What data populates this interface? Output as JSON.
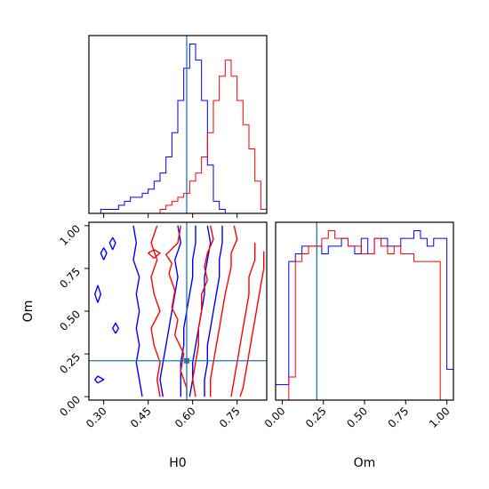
{
  "chart_data": {
    "type": "corner",
    "parameters": [
      "H0",
      "Om"
    ],
    "truth": {
      "H0": 0.58,
      "Om": 0.21
    },
    "colors": {
      "series_a": "#0000ff",
      "series_b": "#ff0000",
      "truth": "#1f77b4"
    },
    "panels": [
      {
        "id": "h0-marginal",
        "type": "histogram",
        "xlim": [
          0.25,
          0.85
        ],
        "xticks": [
          0.3,
          0.45,
          0.6,
          0.75
        ],
        "bins": {
          "start": 0.25,
          "width": 0.02
        },
        "series": [
          {
            "color": "#0000ff",
            "counts": [
              0,
              0,
              1,
              1,
              1,
              2,
              3,
              4,
              4,
              5,
              6,
              8,
              10,
              14,
              20,
              28,
              36,
              42,
              38,
              28,
              12,
              3,
              1,
              0,
              0,
              0,
              0,
              0,
              0,
              0
            ]
          },
          {
            "color": "#ff0000",
            "counts": [
              0,
              0,
              0,
              0,
              0,
              0,
              0,
              0,
              0,
              0,
              0,
              0,
              1,
              2,
              3,
              4,
              5,
              8,
              10,
              14,
              20,
              28,
              34,
              38,
              34,
              28,
              22,
              16,
              8,
              1
            ]
          }
        ]
      },
      {
        "id": "h0-om-contour",
        "type": "contour",
        "xlabel": "H0",
        "ylabel": "Om",
        "xlim": [
          0.25,
          0.85
        ],
        "ylim": [
          -0.02,
          1.02
        ],
        "xticks": [
          "0.30",
          "0.45",
          "0.60",
          "0.75"
        ],
        "yticks": [
          "0.00",
          "0.25",
          "0.50",
          "0.75",
          "1.00"
        ],
        "series": [
          {
            "color": "#0000ff",
            "contours": [
              [
                [
                  0.4,
                  1.0
                ],
                [
                  0.41,
                  0.9
                ],
                [
                  0.4,
                  0.8
                ],
                [
                  0.42,
                  0.7
                ],
                [
                  0.41,
                  0.6
                ],
                [
                  0.42,
                  0.5
                ],
                [
                  0.41,
                  0.4
                ],
                [
                  0.42,
                  0.3
                ],
                [
                  0.41,
                  0.2
                ],
                [
                  0.42,
                  0.1
                ],
                [
                  0.43,
                  0.0
                ]
              ],
              [
                [
                  0.55,
                  1.0
                ],
                [
                  0.56,
                  0.9
                ],
                [
                  0.54,
                  0.8
                ],
                [
                  0.55,
                  0.7
                ],
                [
                  0.54,
                  0.6
                ],
                [
                  0.53,
                  0.5
                ],
                [
                  0.52,
                  0.4
                ],
                [
                  0.51,
                  0.3
                ],
                [
                  0.5,
                  0.2
                ],
                [
                  0.49,
                  0.1
                ],
                [
                  0.5,
                  0.0
                ]
              ],
              [
                [
                  0.61,
                  1.0
                ],
                [
                  0.61,
                  0.9
                ],
                [
                  0.6,
                  0.8
                ],
                [
                  0.6,
                  0.7
                ],
                [
                  0.59,
                  0.6
                ],
                [
                  0.58,
                  0.5
                ],
                [
                  0.57,
                  0.4
                ],
                [
                  0.57,
                  0.3
                ],
                [
                  0.56,
                  0.2
                ],
                [
                  0.56,
                  0.1
                ],
                [
                  0.56,
                  0.0
                ]
              ],
              [
                [
                  0.65,
                  1.0
                ],
                [
                  0.66,
                  0.9
                ],
                [
                  0.65,
                  0.8
                ],
                [
                  0.64,
                  0.7
                ],
                [
                  0.64,
                  0.6
                ],
                [
                  0.63,
                  0.5
                ],
                [
                  0.62,
                  0.4
                ],
                [
                  0.61,
                  0.3
                ],
                [
                  0.6,
                  0.2
                ],
                [
                  0.6,
                  0.1
                ],
                [
                  0.59,
                  0.0
                ]
              ],
              [
                [
                  0.7,
                  1.0
                ],
                [
                  0.7,
                  0.9
                ],
                [
                  0.69,
                  0.8
                ],
                [
                  0.69,
                  0.7
                ],
                [
                  0.68,
                  0.6
                ],
                [
                  0.67,
                  0.5
                ],
                [
                  0.66,
                  0.4
                ],
                [
                  0.65,
                  0.3
                ],
                [
                  0.65,
                  0.2
                ],
                [
                  0.64,
                  0.1
                ],
                [
                  0.64,
                  0.0
                ]
              ],
              [
                [
                  0.28,
                  0.55
                ],
                [
                  0.29,
                  0.6
                ],
                [
                  0.28,
                  0.65
                ],
                [
                  0.27,
                  0.6
                ],
                [
                  0.28,
                  0.55
                ]
              ],
              [
                [
                  0.3,
                  0.8
                ],
                [
                  0.31,
                  0.84
                ],
                [
                  0.3,
                  0.87
                ],
                [
                  0.29,
                  0.84
                ],
                [
                  0.3,
                  0.8
                ]
              ],
              [
                [
                  0.33,
                  0.86
                ],
                [
                  0.34,
                  0.9
                ],
                [
                  0.33,
                  0.93
                ],
                [
                  0.32,
                  0.9
                ],
                [
                  0.33,
                  0.86
                ]
              ],
              [
                [
                  0.34,
                  0.37
                ],
                [
                  0.35,
                  0.4
                ],
                [
                  0.34,
                  0.43
                ],
                [
                  0.33,
                  0.4
                ],
                [
                  0.34,
                  0.37
                ]
              ],
              [
                [
                  0.28,
                  0.08
                ],
                [
                  0.3,
                  0.1
                ],
                [
                  0.28,
                  0.12
                ],
                [
                  0.27,
                  0.1
                ],
                [
                  0.28,
                  0.08
                ]
              ]
            ]
          },
          {
            "color": "#ff0000",
            "contours": [
              [
                [
                  0.48,
                  1.0
                ],
                [
                  0.46,
                  0.9
                ],
                [
                  0.48,
                  0.8
                ],
                [
                  0.46,
                  0.7
                ],
                [
                  0.47,
                  0.6
                ],
                [
                  0.49,
                  0.5
                ],
                [
                  0.46,
                  0.4
                ],
                [
                  0.47,
                  0.3
                ],
                [
                  0.49,
                  0.2
                ],
                [
                  0.48,
                  0.1
                ],
                [
                  0.49,
                  0.0
                ]
              ],
              [
                [
                  0.56,
                  1.0
                ],
                [
                  0.55,
                  0.9
                ],
                [
                  0.51,
                  0.83
                ],
                [
                  0.53,
                  0.78
                ],
                [
                  0.52,
                  0.72
                ],
                [
                  0.54,
                  0.62
                ],
                [
                  0.53,
                  0.52
                ],
                [
                  0.55,
                  0.45
                ],
                [
                  0.54,
                  0.36
                ],
                [
                  0.57,
                  0.25
                ],
                [
                  0.56,
                  0.15
                ],
                [
                  0.58,
                  0.05
                ],
                [
                  0.58,
                  0.0
                ]
              ],
              [
                [
                  0.66,
                  1.0
                ],
                [
                  0.67,
                  0.92
                ],
                [
                  0.65,
                  0.84
                ],
                [
                  0.64,
                  0.76
                ],
                [
                  0.65,
                  0.68
                ],
                [
                  0.63,
                  0.6
                ],
                [
                  0.63,
                  0.5
                ],
                [
                  0.62,
                  0.4
                ],
                [
                  0.62,
                  0.3
                ],
                [
                  0.61,
                  0.2
                ],
                [
                  0.6,
                  0.1
                ],
                [
                  0.61,
                  0.0
                ]
              ],
              [
                [
                  0.74,
                  1.0
                ],
                [
                  0.75,
                  0.92
                ],
                [
                  0.73,
                  0.84
                ],
                [
                  0.73,
                  0.76
                ],
                [
                  0.72,
                  0.68
                ],
                [
                  0.71,
                  0.6
                ],
                [
                  0.7,
                  0.5
                ],
                [
                  0.69,
                  0.4
                ],
                [
                  0.68,
                  0.3
                ],
                [
                  0.67,
                  0.2
                ],
                [
                  0.66,
                  0.1
                ],
                [
                  0.66,
                  0.0
                ]
              ],
              [
                [
                  0.81,
                  0.9
                ],
                [
                  0.81,
                  0.8
                ],
                [
                  0.79,
                  0.7
                ],
                [
                  0.79,
                  0.6
                ],
                [
                  0.78,
                  0.5
                ],
                [
                  0.77,
                  0.4
                ],
                [
                  0.76,
                  0.3
                ],
                [
                  0.75,
                  0.2
                ],
                [
                  0.74,
                  0.1
                ],
                [
                  0.73,
                  0.0
                ]
              ],
              [
                [
                  0.84,
                  0.85
                ],
                [
                  0.84,
                  0.75
                ],
                [
                  0.83,
                  0.65
                ],
                [
                  0.82,
                  0.55
                ],
                [
                  0.81,
                  0.45
                ],
                [
                  0.8,
                  0.35
                ],
                [
                  0.79,
                  0.25
                ],
                [
                  0.78,
                  0.15
                ],
                [
                  0.77,
                  0.05
                ],
                [
                  0.76,
                  0.0
                ]
              ],
              [
                [
                  0.47,
                  0.81
                ],
                [
                  0.49,
                  0.84
                ],
                [
                  0.47,
                  0.86
                ],
                [
                  0.45,
                  0.84
                ],
                [
                  0.47,
                  0.81
                ]
              ]
            ]
          }
        ]
      },
      {
        "id": "om-marginal",
        "type": "histogram",
        "xlabel": "Om",
        "xlim": [
          -0.04,
          1.04
        ],
        "xticks": [
          "0.00",
          "0.25",
          "0.50",
          "0.75",
          "1.00"
        ],
        "bins": {
          "start": -0.04,
          "width": 0.04
        },
        "series": [
          {
            "color": "#0000ff",
            "counts": [
              0.2,
              0.2,
              1.8,
              1.9,
              2.0,
              2.0,
              2.0,
              1.9,
              2.0,
              2.0,
              2.1,
              2.0,
              1.9,
              2.1,
              1.9,
              2.1,
              2.1,
              2.0,
              2.0,
              2.1,
              2.1,
              2.2,
              2.1,
              2.0,
              2.1,
              2.1,
              0.4
            ]
          },
          {
            "color": "#ff0000",
            "counts": [
              0,
              0,
              0.3,
              1.8,
              1.9,
              2.0,
              2.0,
              2.1,
              2.2,
              2.1,
              2.1,
              2.0,
              2.0,
              1.9,
              1.9,
              2.1,
              2.0,
              1.9,
              2.0,
              1.9,
              1.9,
              1.8,
              1.8,
              1.8,
              1.8,
              0.0,
              0.0
            ]
          }
        ]
      }
    ]
  }
}
